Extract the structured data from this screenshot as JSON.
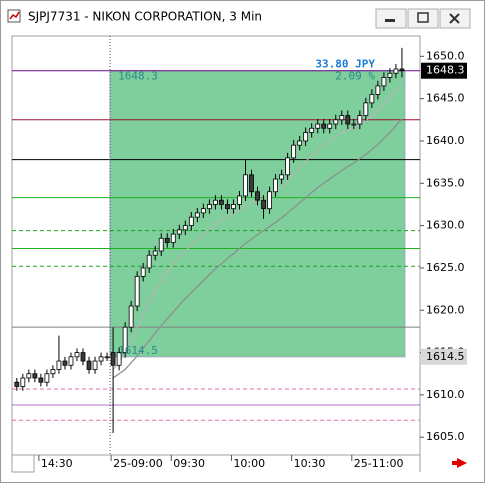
{
  "window": {
    "title": "SJPJ7731 - NIKON CORPORATION, 3 Min"
  },
  "chart_data": {
    "type": "candlestick",
    "open": [
      1611.5,
      1611,
      1612,
      1612.5,
      1612,
      1611.5,
      1612.5,
      1613,
      1614,
      1613.5,
      1614.5,
      1615,
      1614,
      1613,
      1614,
      1614.5,
      1615,
      1613.5,
      1615,
      1618,
      1620.5,
      1624,
      1625,
      1626.5,
      1627,
      1628.5,
      1628,
      1629,
      1629.5,
      1630,
      1631,
      1631.5,
      1632,
      1632.5,
      1633,
      1632.5,
      1632,
      1632.5,
      1633.5,
      1636,
      1634,
      1633,
      1632,
      1634,
      1635.5,
      1636,
      1638,
      1639.5,
      1640,
      1641,
      1641.5,
      1642,
      1641.5,
      1642,
      1642.5,
      1643,
      1642,
      1642,
      1643,
      1644.5,
      1645.5,
      1646.5,
      1647.5,
      1648,
      1648.5
    ],
    "high": [
      1612,
      1612.5,
      1613,
      1613,
      1612.5,
      1613,
      1613.5,
      1617,
      1614.5,
      1615,
      1615.5,
      1615.5,
      1614.5,
      1614.5,
      1615,
      1615,
      1618,
      1615.6,
      1618.6,
      1621.1,
      1624.6,
      1625.6,
      1627.1,
      1627.6,
      1629.1,
      1629.1,
      1629.6,
      1630.1,
      1630.6,
      1631.6,
      1632.1,
      1632.6,
      1633.1,
      1633.6,
      1633.6,
      1633.1,
      1633.1,
      1634.1,
      1637.8,
      1636.6,
      1634.6,
      1633.6,
      1634.6,
      1636.1,
      1636.6,
      1638.6,
      1640.1,
      1640.6,
      1641.6,
      1642.1,
      1642.6,
      1642.6,
      1642.6,
      1643.1,
      1643.6,
      1643.6,
      1642.6,
      1643.6,
      1645.1,
      1646.1,
      1647.1,
      1648.1,
      1648.6,
      1649.1,
      1651
    ],
    "low": [
      1610.5,
      1610.5,
      1611.5,
      1611.5,
      1611,
      1611,
      1612,
      1612.5,
      1613,
      1613,
      1614,
      1613.5,
      1612.5,
      1612.5,
      1613.5,
      1614,
      1605.5,
      1612.9,
      1614.4,
      1617.4,
      1619.9,
      1623.4,
      1624.4,
      1625.9,
      1626.4,
      1627.4,
      1627.4,
      1628.4,
      1628.9,
      1629.4,
      1630.4,
      1630.9,
      1631.4,
      1631.9,
      1631.9,
      1631.4,
      1631.4,
      1631.9,
      1632.9,
      1633.4,
      1632.4,
      1630.8,
      1631.4,
      1633.4,
      1634.9,
      1635.4,
      1637.4,
      1638.9,
      1639.4,
      1640.4,
      1640.9,
      1640.9,
      1640.9,
      1641.4,
      1641.9,
      1641.4,
      1641.4,
      1641.4,
      1642.4,
      1643.9,
      1644.9,
      1645.9,
      1646.9,
      1647.4,
      1647.5
    ],
    "close": [
      1611,
      1612,
      1612.5,
      1612,
      1611.5,
      1612.5,
      1613,
      1614,
      1613.5,
      1614.5,
      1615,
      1614,
      1613,
      1614,
      1614.5,
      1614.5,
      1613.5,
      1615,
      1618,
      1620.5,
      1624,
      1625,
      1626.5,
      1627,
      1628.5,
      1628,
      1629,
      1629.5,
      1630,
      1631,
      1631.5,
      1632,
      1632.5,
      1633,
      1632.5,
      1632,
      1632.5,
      1633.5,
      1636,
      1634,
      1633,
      1632,
      1634,
      1635.5,
      1636,
      1638,
      1639.5,
      1640,
      1641,
      1641.5,
      1642,
      1641.5,
      1642,
      1642.5,
      1643,
      1642,
      1642,
      1643,
      1644.5,
      1645.5,
      1646.5,
      1647.5,
      1648,
      1648.5,
      1648.3
    ],
    "up_color": "#ffffff",
    "down_color": "#3a3a3a",
    "series": [
      {
        "color": "#b5b5b5",
        "values": [
          null,
          null,
          null,
          null,
          null,
          null,
          null,
          null,
          null,
          null,
          null,
          null,
          null,
          null,
          null,
          null,
          1613,
          1613.8,
          1615,
          1616.5,
          1618,
          1619.5,
          1621,
          1622.3,
          1623.5,
          1624.5,
          1625.4,
          1626.2,
          1627,
          1627.7,
          1628.4,
          1629,
          1629.6,
          1630.1,
          1630.6,
          1631,
          1631.4,
          1631.8,
          1632.4,
          1632.8,
          1633,
          1633.2,
          1633.5,
          1634,
          1634.6,
          1635.3,
          1636,
          1636.8,
          1637.6,
          1638.3,
          1639,
          1639.5,
          1640,
          1640.5,
          1641,
          1641.3,
          1641.5,
          1641.9,
          1642.4,
          1643,
          1643.7,
          1644.4,
          1645.2,
          1646,
          1646.6
        ]
      },
      {
        "color": "#8c8c8c",
        "values": [
          null,
          null,
          null,
          null,
          null,
          null,
          null,
          null,
          null,
          null,
          null,
          null,
          null,
          null,
          null,
          null,
          1612,
          1612.5,
          1613,
          1613.8,
          1614.6,
          1615.5,
          1616.4,
          1617.3,
          1618.2,
          1619,
          1619.8,
          1620.6,
          1621.4,
          1622.1,
          1622.8,
          1623.5,
          1624.2,
          1624.9,
          1625.5,
          1626.1,
          1626.7,
          1627.3,
          1627.9,
          1628.4,
          1628.9,
          1629.4,
          1629.9,
          1630.4,
          1630.9,
          1631.5,
          1632.1,
          1632.7,
          1633.3,
          1633.9,
          1634.5,
          1635,
          1635.5,
          1636,
          1636.5,
          1637,
          1637.4,
          1637.9,
          1638.4,
          1639,
          1639.6,
          1640.3,
          1641,
          1641.8,
          1642.6
        ]
      }
    ],
    "levels": [
      {
        "value": 1648.3,
        "color": "#6a0a8a",
        "style": "solid"
      },
      {
        "value": 1642.5,
        "color": "#a01030",
        "style": "solid"
      },
      {
        "value": 1637.8,
        "color": "#000000",
        "style": "solid"
      },
      {
        "value": 1633.3,
        "color": "#20b020",
        "style": "solid"
      },
      {
        "value": 1629.4,
        "color": "#20a020",
        "style": "dashed"
      },
      {
        "value": 1627.3,
        "color": "#20b020",
        "style": "solid"
      },
      {
        "value": 1625.2,
        "color": "#20a020",
        "style": "dashed"
      },
      {
        "value": 1618,
        "color": "#808080",
        "style": "solid"
      },
      {
        "value": 1610.7,
        "color": "#e070b0",
        "style": "dashed"
      },
      {
        "value": 1608.8,
        "color": "#b070d0",
        "style": "solid"
      },
      {
        "value": 1607,
        "color": "#e070b0",
        "style": "dashed"
      }
    ],
    "range_box": {
      "high": 1648.3,
      "low": 1614.5,
      "high_label": "1648.3",
      "low_label": "1614.5",
      "change_label": "33.80 JPY",
      "percent_label": "2.09 %",
      "color": "#7fcf9d"
    },
    "price_markers": [
      {
        "value": 1648.3,
        "label": "1648.3",
        "color": "#000000",
        "text_color": "#ffffff"
      },
      {
        "value": 1614.5,
        "label": "1614.5",
        "color": "#d8d8d8",
        "text_color": "#000000"
      }
    ],
    "xlim": [
      -0.8,
      67
    ],
    "xticks": [
      {
        "value": 4,
        "label": "14:30"
      },
      {
        "value": 16,
        "label": "25-09:00"
      },
      {
        "value": 26,
        "label": "09:30"
      },
      {
        "value": 36,
        "label": "10:00"
      },
      {
        "value": 46,
        "label": "10:30"
      },
      {
        "value": 56,
        "label": "25-11:00"
      }
    ],
    "ylim": [
      1602.9,
      1652.4
    ],
    "yticks": [
      {
        "value": 1605,
        "label": "1605.0"
      },
      {
        "value": 1610,
        "label": "1610.0"
      },
      {
        "value": 1615,
        "label": "1615.0"
      },
      {
        "value": 1620,
        "label": "1620.0"
      },
      {
        "value": 1625,
        "label": "1625.0"
      },
      {
        "value": 1630,
        "label": "1630.0"
      },
      {
        "value": 1635,
        "label": "1635.0"
      },
      {
        "value": 1640,
        "label": "1640.0"
      },
      {
        "value": 1645,
        "label": "1645.0"
      },
      {
        "value": 1650,
        "label": "1650.0"
      }
    ]
  }
}
